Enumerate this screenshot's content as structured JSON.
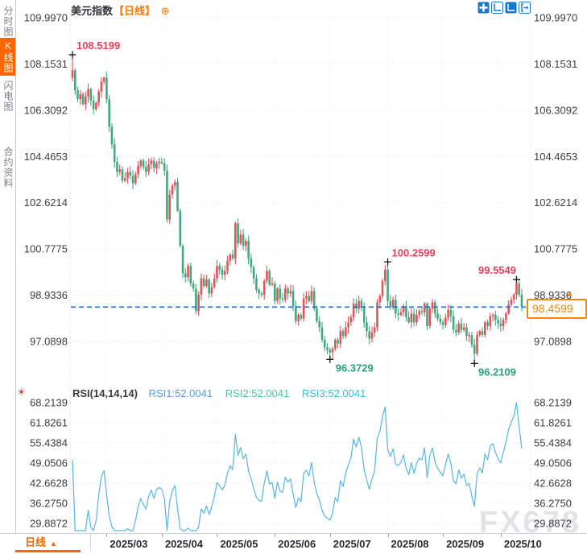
{
  "header": {
    "symbol": "美元指数",
    "period_tag": "【日线】"
  },
  "icons": {
    "circle_plus": "⊕",
    "gear": "☀",
    "caret_up": "▲",
    "triangle_up": "▲"
  },
  "sidebar": {
    "items": [
      {
        "label": "分时图",
        "active": false
      },
      {
        "label": "K线图",
        "active": true
      },
      {
        "label": "闪电图",
        "active": false
      },
      {
        "label": "合约资料",
        "active": false
      }
    ]
  },
  "toolbar": {
    "icons": [
      "crosshair",
      "axis-range",
      "axis-range-active",
      "pan-exit"
    ]
  },
  "footer": {
    "period_label": "日线"
  },
  "watermark": {
    "text": "FX678"
  },
  "colors": {
    "up_candle": "#e0545a",
    "down_candle": "#43a87e",
    "ann_red": "#e8405a",
    "ann_green": "#2aa17d",
    "accent_orange": "#ff6600",
    "price_box": "#f8860b",
    "dashed_line": "#1470e8",
    "rsi_line": "#58b6e4",
    "rsi1_label": "#5b9bd5",
    "rsi2_label": "#55c3a2",
    "rsi3_label": "#3fbcd8",
    "toolbar_blue": "#1878c8"
  },
  "chart_data": [
    {
      "type": "candlestick",
      "title": "美元指数【日线】",
      "y_tick_labels": [
        "109.9970",
        "108.1531",
        "106.3092",
        "104.4653",
        "102.6214",
        "100.7775",
        "98.9336",
        "97.0898"
      ],
      "ylim": [
        95.6,
        110.4
      ],
      "grid": true,
      "x_tick_labels": [
        "2025/03",
        "2025/04",
        "2025/05",
        "2025/06",
        "2025/07",
        "2025/08",
        "2025/09",
        "2025/10"
      ],
      "x_tick_indices": [
        13,
        34,
        55,
        77,
        98,
        120,
        141,
        163
      ],
      "closes": [
        107.9,
        107.1,
        106.75,
        106.95,
        106.55,
        106.85,
        107.15,
        106.7,
        106.35,
        106.6,
        107.05,
        107.45,
        107.6,
        106.75,
        105.65,
        104.95,
        104.25,
        103.85,
        103.95,
        103.5,
        103.6,
        103.85,
        103.7,
        103.4,
        103.75,
        104.1,
        104.3,
        104.05,
        103.85,
        104.15,
        104.3,
        104.0,
        104.2,
        104.25,
        104.2,
        103.9,
        101.95,
        102.95,
        103.3,
        103.45,
        102.3,
        100.9,
        99.8,
        99.65,
        100.1,
        99.4,
        99.2,
        98.3,
        98.95,
        99.6,
        99.3,
        99.55,
        99.0,
        99.25,
        99.6,
        100.1,
        99.95,
        99.75,
        99.9,
        100.3,
        100.55,
        100.4,
        101.8,
        101.0,
        101.35,
        100.9,
        101.1,
        100.4,
        100.05,
        99.6,
        99.15,
        99.0,
        98.95,
        99.5,
        99.9,
        99.35,
        99.4,
        98.7,
        99.2,
        98.8,
        98.75,
        99.2,
        99.0,
        99.1,
        98.5,
        97.9,
        98.15,
        98.0,
        98.8,
        98.9,
        98.7,
        99.1,
        98.4,
        97.9,
        97.65,
        97.15,
        96.85,
        96.75,
        96.65,
        96.8,
        97.15,
        97.0,
        97.5,
        97.3,
        97.65,
        97.85,
        98.05,
        98.6,
        98.4,
        98.7,
        98.45,
        97.85,
        97.5,
        97.2,
        97.45,
        97.65,
        98.65,
        98.9,
        99.5,
        99.95,
        98.7,
        98.45,
        98.75,
        98.2,
        98.15,
        98.25,
        98.5,
        98.05,
        97.85,
        98.2,
        97.85,
        98.15,
        98.3,
        98.25,
        98.6,
        97.7,
        98.4,
        98.65,
        98.2,
        98.0,
        97.85,
        97.75,
        98.05,
        98.35,
        98.1,
        97.55,
        97.45,
        97.8,
        97.55,
        97.65,
        97.3,
        97.35,
        96.95,
        96.6,
        97.35,
        97.5,
        97.35,
        97.85,
        97.7,
        98.1,
        98.15,
        97.95,
        97.8,
        97.7,
        97.95,
        98.2,
        98.55,
        98.75,
        98.95,
        99.4,
        98.95,
        98.46
      ],
      "open_rule": "open equals previous close",
      "annotations": [
        {
          "index": 0,
          "kind": "high",
          "value": 108.5199,
          "label": "108.5199"
        },
        {
          "index": 98,
          "kind": "low",
          "value": 96.3729,
          "label": "96.3729"
        },
        {
          "index": 120,
          "kind": "high",
          "value": 100.2599,
          "label": "100.2599"
        },
        {
          "index": 153,
          "kind": "low",
          "value": 96.2109,
          "label": "96.2109"
        },
        {
          "index": 169,
          "kind": "high",
          "value": 99.5549,
          "label": "99.5549"
        }
      ],
      "current_price": 98.4599,
      "current_price_label": "98.4599"
    },
    {
      "type": "line",
      "title": "RSI(14,14,14)",
      "legend": [
        "RSI1:52.0041",
        "RSI2:52.0041",
        "RSI3:52.0041"
      ],
      "y_tick_labels": [
        "68.2139",
        "61.8261",
        "55.4384",
        "49.0506",
        "42.6628",
        "36.2750",
        "29.8872"
      ],
      "derivation": "RSI(14) computed from candlestick closes",
      "period": 14
    }
  ]
}
